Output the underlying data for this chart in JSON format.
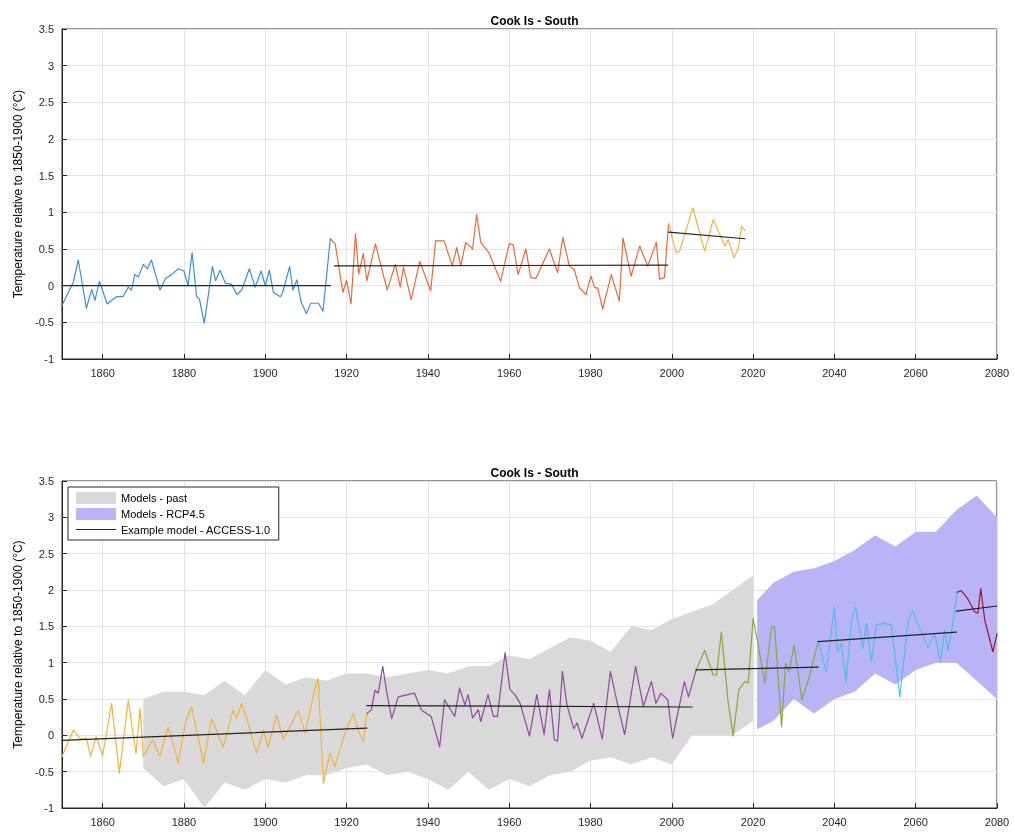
{
  "chart_data": [
    {
      "type": "line",
      "title": "Cook Is - South",
      "ylabel": "Temperature relative to 1850-1900 (°C)",
      "xlim": [
        1850,
        2080
      ],
      "xticks": [
        1860,
        1880,
        1900,
        1920,
        1940,
        1960,
        1980,
        2000,
        2020,
        2040,
        2060,
        2080
      ],
      "ylim": [
        -1,
        3.5
      ],
      "yticks": [
        -1,
        -0.5,
        0,
        0.5,
        1,
        1.5,
        2,
        2.5,
        3,
        3.5
      ],
      "grid": true,
      "legend": false,
      "marker": "none",
      "line_style": "solid",
      "series": [
        {
          "type": "line",
          "color": "#3d8fd6",
          "x": [
            1850,
            1852.8,
            1854,
            1856,
            1857.3,
            1858.1,
            1859.2,
            1861.1,
            1863.4,
            1865,
            1866.3,
            1867.1,
            1867.9,
            1868.8,
            1870,
            1871,
            1872,
            1874.1,
            1875.5,
            1877,
            1878.6,
            1880,
            1881,
            1882,
            1883.1,
            1883.8,
            1885,
            1887,
            1887.8,
            1888.9,
            1890.2,
            1891.7,
            1893,
            1894.2,
            1896.1,
            1897.5,
            1899,
            1900,
            1901,
            1902,
            1903.7,
            1904.3,
            1906,
            1906.8,
            1907.8,
            1908.8,
            1910.1,
            1911.2,
            1913.1,
            1914.2,
            1916
          ],
          "values": [
            -0.27,
            0.05,
            0.35,
            -0.31,
            -0.05,
            -0.2,
            0.06,
            -0.25,
            -0.15,
            -0.15,
            -0.02,
            -0.06,
            0.15,
            0.12,
            0.29,
            0.23,
            0.35,
            -0.06,
            0.1,
            0.15,
            0.23,
            0.2,
            0,
            0.45,
            -0.15,
            -0.18,
            -0.51,
            0.26,
            0.07,
            0.21,
            0.03,
            0.02,
            -0.12,
            -0.06,
            0.23,
            -0.02,
            0.2,
            0,
            0.21,
            -0.09,
            -0.15,
            -0.09,
            0.26,
            -0.06,
            0.08,
            -0.22,
            -0.38,
            -0.24,
            -0.24,
            -0.35,
            0.64
          ]
        },
        {
          "type": "line",
          "color": "#e8693a",
          "x": [
            1916,
            1917.2,
            1919.1,
            1920,
            1921.1,
            1922.2,
            1923,
            1924.1,
            1925,
            1927.1,
            1930,
            1932,
            1933.2,
            1934,
            1935.9,
            1938,
            1940.7,
            1941.9,
            1944,
            1946,
            1947.1,
            1948.1,
            1949.3,
            1951,
            1952,
            1953,
            1955,
            1957.9,
            1960,
            1961,
            1962.2,
            1964.1,
            1965.3,
            1966.6,
            1969.9,
            1971.9,
            1973.2,
            1974.8,
            1976,
            1977.3,
            1978.9,
            1980.1,
            1981.1,
            1981.8,
            1983,
            1985.1,
            1987.1,
            1988,
            1990,
            1992.1,
            1994.1,
            1996.2,
            1997,
            1998.2,
            1999.2
          ],
          "values": [
            0.64,
            0.57,
            -0.09,
            0.07,
            -0.25,
            0.71,
            0.16,
            0.44,
            0.07,
            0.57,
            -0.06,
            0.29,
            -0.02,
            0.25,
            -0.19,
            0.33,
            -0.07,
            0.61,
            0.61,
            0.27,
            0.52,
            0.27,
            0.59,
            0.5,
            0.97,
            0.59,
            0.45,
            0.06,
            0.57,
            0.56,
            0.15,
            0.5,
            0.11,
            0.1,
            0.5,
            0.18,
            0.66,
            0.27,
            0.22,
            -0.03,
            -0.12,
            0.13,
            -0.03,
            -0.03,
            -0.32,
            0.15,
            -0.21,
            0.65,
            0.13,
            0.54,
            0.27,
            0.59,
            0.09,
            0.11,
            0.85
          ]
        },
        {
          "type": "line",
          "color": "#f2b33d",
          "x": [
            1999.2,
            2001.1,
            2001.9,
            2003.2,
            2005.2,
            2006.5,
            2008.1,
            2010.2,
            2013.1,
            2013.9,
            2015.3,
            2016.3,
            2017.2,
            2018
          ],
          "values": [
            0.85,
            0.45,
            0.47,
            0.7,
            1.06,
            0.79,
            0.47,
            0.9,
            0.54,
            0.63,
            0.38,
            0.5,
            0.81,
            0.75
          ]
        },
        {
          "color": "#222222",
          "x": [
            1850,
            1916
          ],
          "values": [
            0,
            0
          ]
        },
        {
          "color": "#222222",
          "x": [
            1917,
            1999
          ],
          "values": [
            0.27,
            0.28
          ]
        },
        {
          "color": "#222222",
          "x": [
            1999.2,
            2018
          ],
          "values": [
            0.73,
            0.64
          ]
        }
      ]
    },
    {
      "type": "line",
      "title": "Cook Is - South",
      "ylabel": "Temperature relative to 1850-1900 (°C)",
      "xlim": [
        1850,
        2080
      ],
      "xticks": [
        1860,
        1880,
        1900,
        1920,
        1940,
        1960,
        1980,
        2000,
        2020,
        2040,
        2060,
        2080
      ],
      "ylim": [
        -1,
        3.5
      ],
      "yticks": [
        -1,
        -0.5,
        0,
        0.5,
        1,
        1.5,
        2,
        2.5,
        3,
        3.5
      ],
      "grid": true,
      "legend": "top left",
      "marker": "none",
      "line_style": "solid",
      "series": [
        {
          "type": "area",
          "name": "Models - past",
          "color": "#d9d9d9",
          "x": [
            1870,
            1875,
            1880,
            1885,
            1890,
            1895,
            1900,
            1905,
            1910,
            1915,
            1920,
            1925,
            1930,
            1935,
            1940,
            1945,
            1950,
            1955,
            1960,
            1965,
            1970,
            1975,
            1980,
            1985,
            1990,
            1995,
            2000,
            2005,
            2010,
            2015,
            2020
          ],
          "values": [
            null,
            null,
            null,
            null,
            null,
            null,
            null,
            null,
            null,
            null,
            null,
            null,
            null,
            null,
            null,
            null,
            null,
            null,
            null,
            null,
            null,
            null,
            null,
            null,
            null,
            null,
            null,
            null,
            null,
            null,
            null
          ],
          "lower": [
            -0.45,
            -0.7,
            -0.6,
            -1,
            -0.65,
            -0.75,
            -0.6,
            -0.65,
            -0.55,
            -0.55,
            -0.45,
            -0.4,
            -0.55,
            -0.5,
            -0.6,
            -0.75,
            -0.5,
            -0.75,
            -0.6,
            -0.7,
            -0.55,
            -0.5,
            -0.35,
            -0.3,
            -0.4,
            -0.3,
            -0.4,
            0,
            0,
            0,
            0.2
          ],
          "upper": [
            0.5,
            0.6,
            0.6,
            0.55,
            0.75,
            0.55,
            0.9,
            0.7,
            0.8,
            0.75,
            0.85,
            0.85,
            0.8,
            0.85,
            0.9,
            0.85,
            0.95,
            0.95,
            1.1,
            1.05,
            1.2,
            1.35,
            1.3,
            1.15,
            1.5,
            1.45,
            1.6,
            1.7,
            1.8,
            2,
            2.2
          ]
        },
        {
          "type": "area",
          "name": "Models - RCP4.5",
          "color": "#b8b4f5",
          "x": [
            2021,
            2025,
            2030,
            2035,
            2040,
            2045,
            2050,
            2055,
            2060,
            2065,
            2070,
            2075,
            2080
          ],
          "values": [
            null,
            null,
            null,
            null,
            null,
            null,
            null,
            null,
            null,
            null,
            null,
            null,
            null
          ],
          "lower": [
            0.08,
            0.2,
            0.5,
            0.3,
            0.5,
            0.6,
            0.85,
            0.7,
            0.9,
            1,
            1,
            0.75,
            0.5
          ],
          "upper": [
            1.86,
            2.1,
            2.25,
            2.3,
            2.4,
            2.55,
            2.75,
            2.6,
            2.8,
            2.8,
            3.1,
            3.3,
            3
          ]
        },
        {
          "type": "line",
          "color": "#f2b33d",
          "x": [
            1850,
            1852.8,
            1854.4,
            1856,
            1857,
            1858.4,
            1860,
            1862.2,
            1864.1,
            1866.3,
            1868.2,
            1869.2,
            1870,
            1872.3,
            1874.1,
            1876.1,
            1878.6,
            1880.5,
            1881.9,
            1884.8,
            1886.8,
            1889.7,
            1892.1,
            1893,
            1894.2,
            1895.8,
            1897.9,
            1899.5,
            1900.7,
            1902.8,
            1904.4,
            1906.1,
            1908.1,
            1909.8,
            1912.2,
            1913,
            1914.3,
            1915.9,
            1917.1,
            1919.6,
            1921.6,
            1922.9,
            1924.1,
            1925
          ],
          "values": [
            -0.29,
            0.07,
            -0.04,
            -0.04,
            -0.29,
            -0.02,
            -0.28,
            0.44,
            -0.52,
            0.48,
            -0.25,
            0.37,
            -0.29,
            -0.06,
            -0.29,
            0.12,
            -0.38,
            0.21,
            0.39,
            -0.38,
            0.23,
            -0.16,
            0.35,
            0.23,
            0.44,
            0.16,
            -0.25,
            0.07,
            -0.16,
            0.28,
            -0.06,
            0.12,
            0.35,
            0.03,
            0.64,
            0.78,
            -0.66,
            -0.25,
            -0.43,
            0.03,
            0.3,
            0.07,
            -0.09,
            0.3
          ]
        },
        {
          "type": "line",
          "color": "#8e4a9e",
          "x": [
            1925,
            1926.1,
            1927,
            1927.8,
            1928.9,
            1929.8,
            1931.1,
            1932.7,
            1934.3,
            1936.7,
            1938.4,
            1940.8,
            1942.9,
            1944.1,
            1946.6,
            1947.8,
            1949.1,
            1949.9,
            1951,
            1952.4,
            1953,
            1954.8,
            1956.1,
            1957.1,
            1959,
            1960.2,
            1961.4,
            1962.7,
            1965,
            1966.8,
            1968.6,
            1969.9,
            1971.1,
            1971.9,
            1973.1,
            1974.2,
            1975.9,
            1976.7,
            1977.9,
            1980.8,
            1982.9,
            1984.9,
            1986.6,
            1988.4,
            1991.1,
            1993,
            1995,
            1996.1,
            1997.3,
            1999,
            2000.2,
            2003.1,
            2004.1,
            2006
          ],
          "values": [
            0.3,
            0.35,
            0.62,
            0.58,
            0.95,
            0.62,
            0.23,
            0.53,
            0.55,
            0.58,
            0.35,
            0.26,
            -0.16,
            0.49,
            0.26,
            0.65,
            0.42,
            0.56,
            0.24,
            0.35,
            0.19,
            0.56,
            0.26,
            0.26,
            1.14,
            0.63,
            0.56,
            0.44,
            -0.01,
            0.56,
            0.01,
            0.63,
            -0.06,
            -0.08,
            0.88,
            0.42,
            0.09,
            0.17,
            -0.04,
            0.44,
            -0.05,
            0.88,
            0.44,
            0.01,
            0.95,
            0.4,
            0.74,
            0.44,
            0.58,
            0.49,
            -0.04,
            0.74,
            0.53,
            0.9
          ]
        },
        {
          "type": "line",
          "color": "#8aa83a",
          "x": [
            2006,
            2008.1,
            2010.2,
            2011,
            2012.2,
            2013.9,
            2015.1,
            2016.5,
            2018,
            2018.8,
            2020,
            2021.2,
            2022.9,
            2024.5,
            2025.3,
            2027,
            2028,
            2028.8,
            2030.1,
            2032,
            2033.9,
            2036
          ],
          "values": [
            0.9,
            1.17,
            0.83,
            0.83,
            1.42,
            0.44,
            -0.01,
            0.63,
            0.74,
            0.72,
            1.61,
            1.26,
            0.72,
            1.49,
            1.49,
            0.12,
            0.99,
            0.88,
            1.24,
            0.49,
            0.81,
            1.29
          ]
        },
        {
          "type": "line",
          "color": "#4dbeee",
          "x": [
            2036,
            2038,
            2040,
            2040.8,
            2041.7,
            2042.9,
            2044.2,
            2045.2,
            2047,
            2047.9,
            2049.1,
            2050.3,
            2052.4,
            2054,
            2056.1,
            2058.1,
            2059.2,
            2060.7,
            2063,
            2064.7,
            2066.1,
            2067.1,
            2067.9,
            2068.9,
            2070.2
          ],
          "values": [
            1.29,
            0.88,
            1.77,
            1.15,
            1.26,
            0.74,
            1.58,
            1.77,
            1.2,
            1.54,
            1.01,
            1.52,
            1.54,
            1.52,
            0.53,
            1.56,
            1.72,
            1.52,
            1.2,
            1.4,
            1.01,
            1.45,
            1.17,
            1.45,
            1.97
          ]
        },
        {
          "type": "line",
          "color": "#a2142f",
          "x": [
            2070.2,
            2071.2,
            2072.8,
            2074.5,
            2075.3,
            2076,
            2077,
            2079,
            2080
          ],
          "values": [
            1.97,
            1.99,
            1.88,
            1.7,
            1.68,
            2.02,
            1.58,
            1.15,
            1.4
          ]
        },
        {
          "name": "Example model - ACCESS-1.0",
          "color": "#222222",
          "x": [
            1850,
            1925
          ],
          "values": [
            -0.07,
            0.1
          ]
        },
        {
          "color": "#222222",
          "x": [
            1925,
            2005
          ],
          "values": [
            0.41,
            0.39
          ]
        },
        {
          "color": "#222222",
          "x": [
            2006,
            2036
          ],
          "values": [
            0.9,
            0.94
          ]
        },
        {
          "color": "#222222",
          "x": [
            2036,
            2070
          ],
          "values": [
            1.29,
            1.42
          ]
        },
        {
          "color": "#222222",
          "x": [
            2070,
            2080
          ],
          "values": [
            1.71,
            1.78
          ]
        }
      ]
    }
  ]
}
